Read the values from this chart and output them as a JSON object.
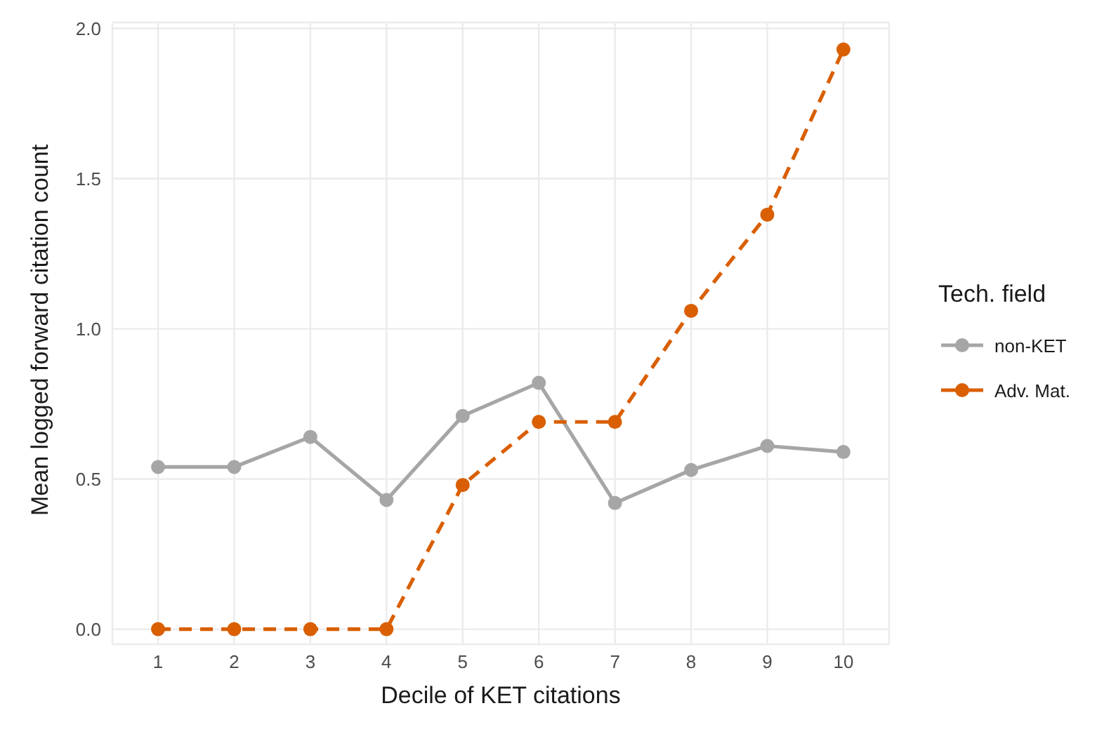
{
  "chart_data": {
    "type": "line",
    "xlabel": "Decile of KET citations",
    "ylabel": "Mean logged forward citation count",
    "legend_title": "Tech. field",
    "categories": [
      "1",
      "2",
      "3",
      "4",
      "5",
      "6",
      "7",
      "8",
      "9",
      "10"
    ],
    "series": [
      {
        "name": "non-KET",
        "color": "#a6a6a6",
        "line_style": "solid",
        "values": [
          0.54,
          0.54,
          0.64,
          0.43,
          0.71,
          0.82,
          0.42,
          0.53,
          0.61,
          0.59
        ]
      },
      {
        "name": "Adv. Mat.",
        "color": "#d95f02",
        "line_style": "dashed",
        "values": [
          0,
          0,
          0,
          0,
          0.48,
          0.69,
          0.69,
          1.06,
          1.38,
          1.93
        ]
      }
    ],
    "ylim": [
      -0.05,
      2.02
    ],
    "yticks": [
      {
        "value": 0,
        "label": "0.0"
      },
      0.5,
      {
        "value": 1,
        "label": "1.0"
      },
      1.5,
      {
        "value": 2,
        "label": "2.0"
      }
    ],
    "grid": true,
    "legend": "right",
    "marker": "circle"
  }
}
